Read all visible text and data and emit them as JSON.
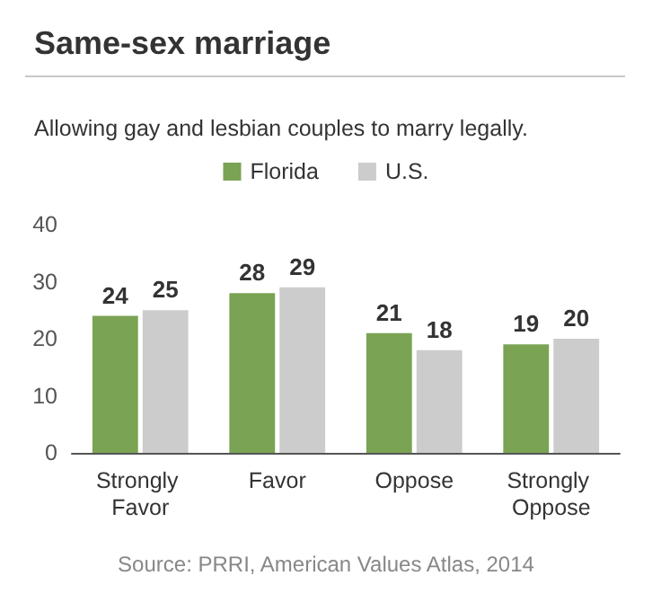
{
  "chart_data": {
    "type": "bar",
    "title": "Same-sex marriage",
    "subtitle": "Allowing gay and lesbian couples to marry legally.",
    "categories": [
      "Strongly Favor",
      "Favor",
      "Oppose",
      "Strongly Oppose"
    ],
    "series": [
      {
        "name": "Florida",
        "color": "#7aa354",
        "values": [
          24,
          28,
          21,
          19
        ]
      },
      {
        "name": "U.S.",
        "color": "#cccccc",
        "values": [
          25,
          29,
          18,
          20
        ]
      }
    ],
    "ylim": [
      0,
      40
    ],
    "yticks": [
      0,
      10,
      20,
      30,
      40
    ],
    "grid": false,
    "legend": "top",
    "data_labels": true,
    "annotations": [
      "Source: PRRI, American Values Atlas, 2014"
    ]
  }
}
